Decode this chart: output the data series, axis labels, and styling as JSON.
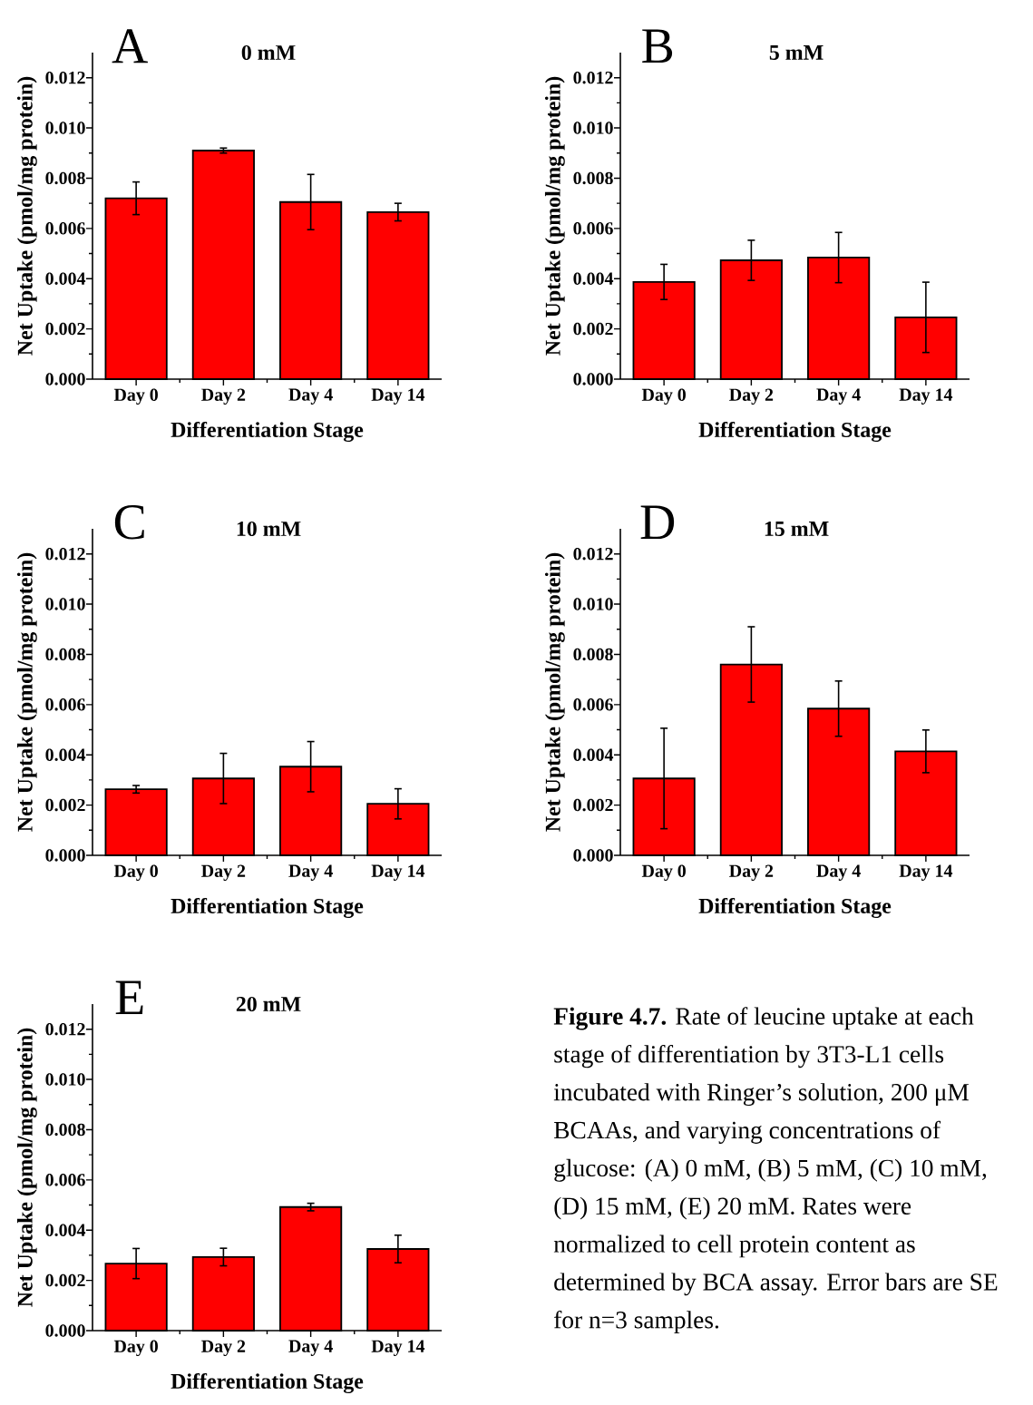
{
  "chart_data": [
    {
      "type": "bar",
      "title": "0 mM",
      "annotations": [
        "A"
      ],
      "xlabel": "Differentiation Stage",
      "ylabel": "Net Uptake (pmol/mg protein)",
      "categories": [
        "Day 0",
        "Day 2",
        "Day 4",
        "Day 14"
      ],
      "values": [
        0.0072,
        0.0091,
        0.00705,
        0.00665
      ],
      "errors": [
        0.00065,
        0.0001,
        0.0011,
        0.00035
      ],
      "color": "#ff0000",
      "ylim": [
        0,
        0.013
      ],
      "yticks": [
        {
          "value": 0,
          "label": "0.000"
        },
        {
          "value": 0.002,
          "label": "0.002"
        },
        {
          "value": 0.004,
          "label": "0.004"
        },
        {
          "value": 0.006,
          "label": "0.006"
        },
        {
          "value": 0.008,
          "label": "0.008"
        },
        {
          "value": 0.01,
          "label": "0.010"
        },
        {
          "value": 0.012,
          "label": "0.012"
        }
      ]
    },
    {
      "type": "bar",
      "title": "5 mM",
      "annotations": [
        "B"
      ],
      "xlabel": "Differentiation Stage",
      "ylabel": "Net Uptake (pmol/mg protein)",
      "categories": [
        "Day 0",
        "Day 2",
        "Day 4",
        "Day 14"
      ],
      "values": [
        0.00387,
        0.00473,
        0.00484,
        0.00246
      ],
      "errors": [
        0.0007,
        0.0008,
        0.001,
        0.0014
      ],
      "color": "#ff0000",
      "ylim": [
        0,
        0.013
      ],
      "yticks": [
        {
          "value": 0,
          "label": "0.000"
        },
        {
          "value": 0.002,
          "label": "0.002"
        },
        {
          "value": 0.004,
          "label": "0.004"
        },
        {
          "value": 0.006,
          "label": "0.006"
        },
        {
          "value": 0.008,
          "label": "0.008"
        },
        {
          "value": 0.01,
          "label": "0.010"
        },
        {
          "value": 0.012,
          "label": "0.012"
        }
      ]
    },
    {
      "type": "bar",
      "title": "10 mM",
      "annotations": [
        "C"
      ],
      "xlabel": "Differentiation Stage",
      "ylabel": "Net Uptake (pmol/mg protein)",
      "categories": [
        "Day 0",
        "Day 2",
        "Day 4",
        "Day 14"
      ],
      "values": [
        0.00263,
        0.00306,
        0.00353,
        0.00205
      ],
      "errors": [
        0.00015,
        0.001,
        0.001,
        0.0006
      ],
      "color": "#ff0000",
      "ylim": [
        0,
        0.013
      ],
      "yticks": [
        {
          "value": 0,
          "label": "0.000"
        },
        {
          "value": 0.002,
          "label": "0.002"
        },
        {
          "value": 0.004,
          "label": "0.004"
        },
        {
          "value": 0.006,
          "label": "0.006"
        },
        {
          "value": 0.008,
          "label": "0.008"
        },
        {
          "value": 0.01,
          "label": "0.010"
        },
        {
          "value": 0.012,
          "label": "0.012"
        }
      ]
    },
    {
      "type": "bar",
      "title": "15 mM",
      "annotations": [
        "D"
      ],
      "xlabel": "Differentiation Stage",
      "ylabel": "Net Uptake (pmol/mg protein)",
      "categories": [
        "Day 0",
        "Day 2",
        "Day 4",
        "Day 14"
      ],
      "values": [
        0.00306,
        0.0076,
        0.00584,
        0.00414
      ],
      "errors": [
        0.002,
        0.0015,
        0.0011,
        0.00085
      ],
      "color": "#ff0000",
      "ylim": [
        0,
        0.013
      ],
      "yticks": [
        {
          "value": 0,
          "label": "0.000"
        },
        {
          "value": 0.002,
          "label": "0.002"
        },
        {
          "value": 0.004,
          "label": "0.004"
        },
        {
          "value": 0.006,
          "label": "0.006"
        },
        {
          "value": 0.008,
          "label": "0.008"
        },
        {
          "value": 0.01,
          "label": "0.010"
        },
        {
          "value": 0.012,
          "label": "0.012"
        }
      ]
    },
    {
      "type": "bar",
      "title": "20 mM",
      "annotations": [
        "E"
      ],
      "xlabel": "Differentiation Stage",
      "ylabel": "Net Uptake (pmol/mg protein)",
      "categories": [
        "Day 0",
        "Day 2",
        "Day 4",
        "Day 14"
      ],
      "values": [
        0.00267,
        0.00293,
        0.00492,
        0.00325
      ],
      "errors": [
        0.0006,
        0.00035,
        0.00015,
        0.00055
      ],
      "color": "#ff0000",
      "ylim": [
        0,
        0.013
      ],
      "yticks": [
        {
          "value": 0,
          "label": "0.000"
        },
        {
          "value": 0.002,
          "label": "0.002"
        },
        {
          "value": 0.004,
          "label": "0.004"
        },
        {
          "value": 0.006,
          "label": "0.006"
        },
        {
          "value": 0.008,
          "label": "0.008"
        },
        {
          "value": 0.01,
          "label": "0.010"
        },
        {
          "value": 0.012,
          "label": "0.012"
        }
      ]
    },
    {
      "type": "other",
      "annotations": [
        "**Figure 4.7.** Rate of leucine uptake at each stage of differentiation by 3T3-L1 cells incubated with Ringer’s solution, 200 μM BCAAs, and varying concentrations of glucose: (A) 0 mM, (B) 5 mM, (C) 10 mM, (D) 15 mM, (E) 20 mM. Rates were normalized to cell protein content as determined by BCA assay. Error bars are SE for n=3 samples."
      ]
    }
  ]
}
